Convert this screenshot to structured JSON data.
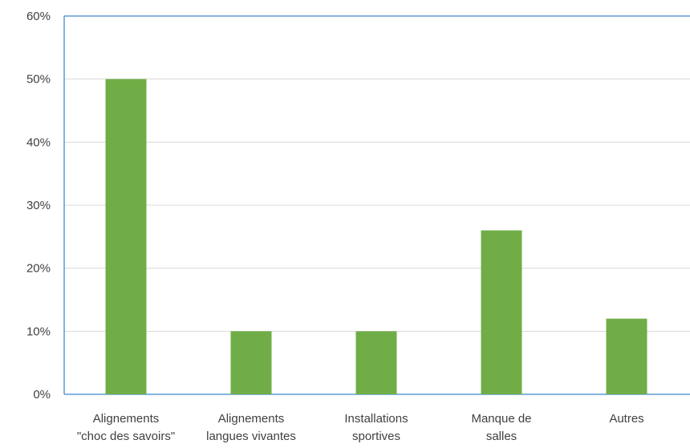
{
  "chart_data": {
    "type": "bar",
    "categories": [
      [
        "Alignements",
        "\"choc des savoirs\""
      ],
      [
        "Alignements",
        "langues vivantes"
      ],
      [
        "Installations",
        "sportives"
      ],
      [
        "Manque de",
        "salles"
      ],
      [
        "Autres"
      ]
    ],
    "values": [
      50,
      10,
      10,
      26,
      12
    ],
    "y_ticks": [
      "0%",
      "10%",
      "20%",
      "30%",
      "40%",
      "50%",
      "60%"
    ],
    "ylim": [
      0,
      60
    ],
    "title": "",
    "xlabel": "",
    "ylabel": "",
    "grid": true,
    "colors": {
      "bar": "#70ad47",
      "grid": "#d9d9d9",
      "frame": "#5b9bd5"
    }
  }
}
